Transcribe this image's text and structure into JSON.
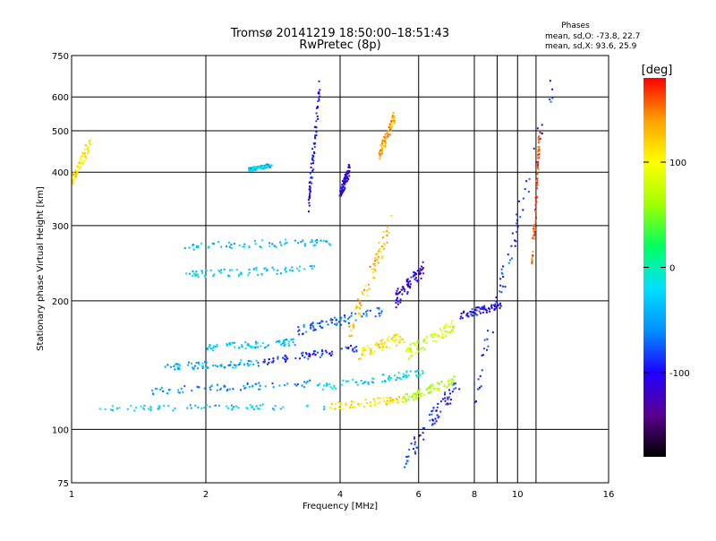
{
  "chart_data": {
    "type": "scatter",
    "title": "Tromsø 20141219 18:50:00–18:51:43",
    "subtitle": "RwPretec (8p)",
    "xlabel": "Frequency [MHz]",
    "ylabel": "Stationary phase Virtual Height [km]",
    "xscale": "log",
    "yscale": "log",
    "xlim": [
      1,
      16
    ],
    "ylim": [
      75,
      750
    ],
    "x_ticks": [
      1,
      2,
      4,
      6,
      8,
      10,
      16
    ],
    "y_ticks": [
      75,
      100,
      200,
      300,
      400,
      500,
      600,
      750
    ],
    "x_gridlines": [
      2,
      4,
      6,
      8,
      9,
      10,
      11
    ],
    "y_gridlines": [
      100,
      200,
      300,
      400,
      500,
      600
    ],
    "grid": true,
    "phase_stats": {
      "heading": "Phases",
      "line_o": "mean, sd,O: -73.8, 22.7",
      "line_x": "mean, sd,X:  93.6, 25.9"
    },
    "colorbar": {
      "label": "[deg]",
      "range": [
        -180,
        180
      ],
      "ticks": [
        100,
        0,
        -100
      ],
      "colormap": [
        "#000000",
        "#5a0090",
        "#2000ff",
        "#0090ff",
        "#00e0ff",
        "#00ff60",
        "#a0ff00",
        "#ffff00",
        "#ffa000",
        "#ff0000"
      ]
    },
    "traces": [
      {
        "x": [
          1.1,
          3.8
        ],
        "y": [
          112,
          113
        ],
        "phase": -30,
        "spread": 0.015
      },
      {
        "x": [
          3.8,
          5.6
        ],
        "y": [
          113,
          118
        ],
        "phase": 110,
        "spread": 0.02
      },
      {
        "x": [
          5.6,
          7.2
        ],
        "y": [
          118,
          130
        ],
        "phase": 70,
        "spread": 0.025
      },
      {
        "x": [
          1.5,
          3.5
        ],
        "y": [
          123,
          128
        ],
        "phase": -60,
        "spread": 0.02
      },
      {
        "x": [
          3.5,
          6.2
        ],
        "y": [
          125,
          136
        ],
        "phase": -20,
        "spread": 0.02
      },
      {
        "x": [
          1.6,
          2.6
        ],
        "y": [
          140,
          143
        ],
        "phase": -45,
        "spread": 0.02
      },
      {
        "x": [
          2.6,
          4.4
        ],
        "y": [
          143,
          155
        ],
        "phase": -90,
        "spread": 0.02
      },
      {
        "x": [
          4.4,
          5.6
        ],
        "y": [
          150,
          165
        ],
        "phase": 110,
        "spread": 0.03
      },
      {
        "x": [
          5.6,
          7.2
        ],
        "y": [
          150,
          175
        ],
        "phase": 80,
        "spread": 0.035
      },
      {
        "x": [
          2.0,
          3.2
        ],
        "y": [
          155,
          160
        ],
        "phase": -35,
        "spread": 0.02
      },
      {
        "x": [
          3.2,
          5.0
        ],
        "y": [
          170,
          190
        ],
        "phase": -70,
        "spread": 0.025
      },
      {
        "x": [
          1.8,
          3.6
        ],
        "y": [
          230,
          238
        ],
        "phase": -30,
        "spread": 0.02
      },
      {
        "x": [
          1.8,
          3.8
        ],
        "y": [
          268,
          275
        ],
        "phase": -40,
        "spread": 0.02
      },
      {
        "x": [
          3.4,
          3.6
        ],
        "y": [
          330,
          640
        ],
        "phase": -100,
        "spread": 0.04
      },
      {
        "x": [
          4.2,
          5.2
        ],
        "y": [
          170,
          300
        ],
        "phase": 130,
        "spread": 0.06
      },
      {
        "x": [
          4.9,
          5.3
        ],
        "y": [
          440,
          540
        ],
        "phase": 140,
        "spread": 0.03
      },
      {
        "x": [
          5.3,
          6.2
        ],
        "y": [
          200,
          240
        ],
        "phase": -110,
        "spread": 0.04
      },
      {
        "x": [
          7.4,
          9.2
        ],
        "y": [
          185,
          195
        ],
        "phase": -100,
        "spread": 0.02
      },
      {
        "x": [
          5.6,
          7.4
        ],
        "y": [
          85,
          130
        ],
        "phase": -90,
        "spread": 0.05
      },
      {
        "x": [
          8.0,
          12.0
        ],
        "y": [
          120,
          650
        ],
        "phase": -90,
        "spread": 0.08
      },
      {
        "x": [
          10.8,
          11.2
        ],
        "y": [
          250,
          480
        ],
        "phase": 160,
        "spread": 0.05
      },
      {
        "x": [
          2.5,
          2.8
        ],
        "y": [
          405,
          415
        ],
        "phase": -30,
        "spread": 0.01
      },
      {
        "x": [
          4.0,
          4.2
        ],
        "y": [
          350,
          410
        ],
        "phase": -110,
        "spread": 0.03
      },
      {
        "x": [
          1.0,
          1.1
        ],
        "y": [
          380,
          470
        ],
        "phase": 110,
        "spread": 0.03
      }
    ]
  }
}
